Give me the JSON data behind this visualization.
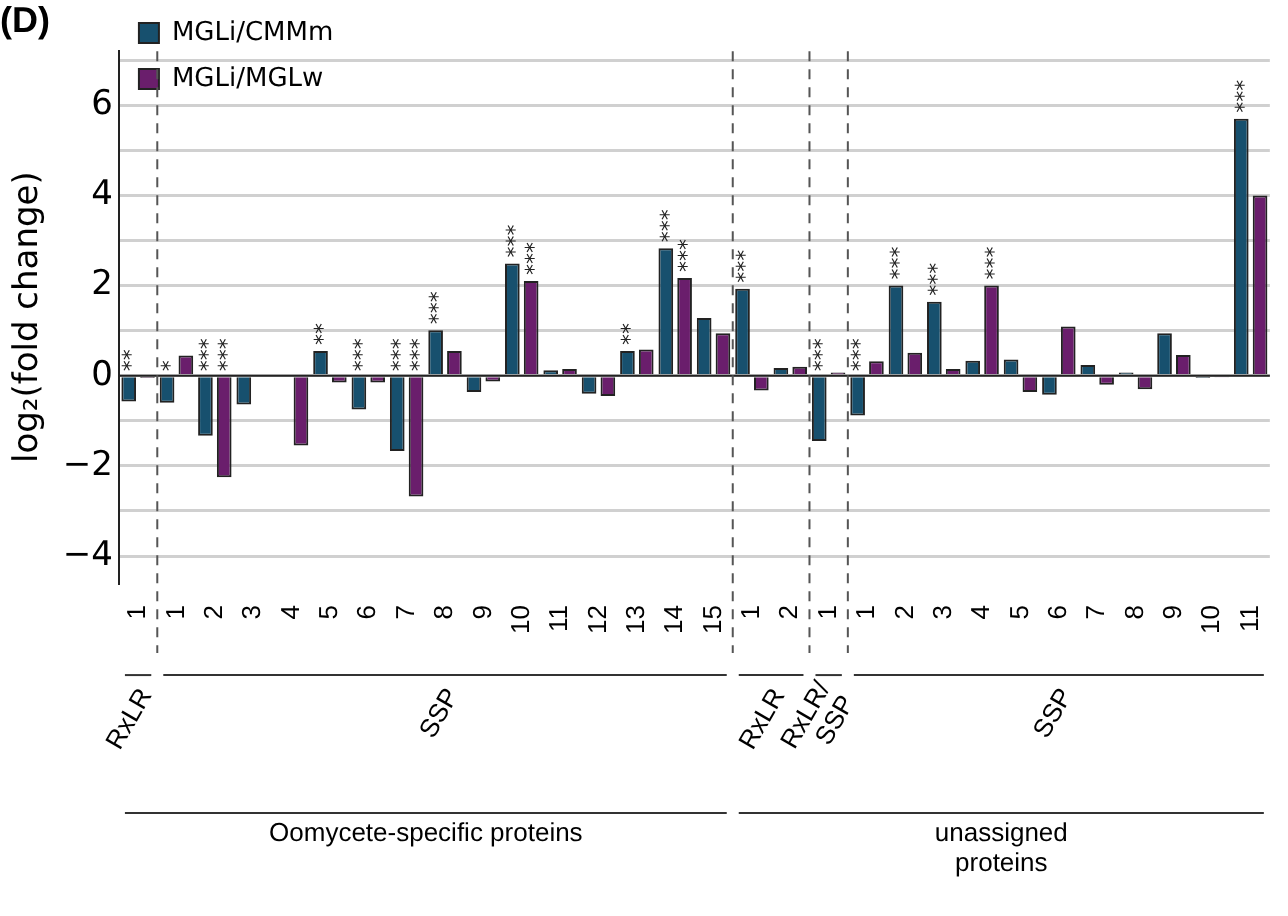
{
  "chart_data": {
    "type": "bar",
    "title": "(D)",
    "ylabel": "log₂(fold change)",
    "categories": [
      "1",
      "1",
      "2",
      "3",
      "4",
      "5",
      "6",
      "7",
      "8",
      "9",
      "10",
      "11",
      "12",
      "13",
      "14",
      "15",
      "1",
      "2",
      "1",
      "1",
      "2",
      "3",
      "4",
      "5",
      "6",
      "7",
      "8",
      "9",
      "10",
      "11"
    ],
    "series": [
      {
        "name": "MGLi/CMMm",
        "color": "#17506e",
        "values": [
          -0.57,
          -0.6,
          -1.33,
          -0.64,
          0,
          0.55,
          -0.75,
          -1.67,
          1.01,
          -0.36,
          2.49,
          0.12,
          -0.4,
          0.55,
          2.83,
          1.28,
          1.93,
          0.17,
          -1.45,
          -0.88,
          2.0,
          1.64,
          0.33,
          0.36,
          -0.42,
          0.24,
          0.07,
          0.94,
          -0.05,
          5.7
        ],
        "value_labels": [
          "**",
          "*",
          "***",
          null,
          null,
          "**",
          "***",
          "***",
          "***",
          null,
          "***",
          null,
          null,
          "**",
          "***",
          null,
          "***",
          null,
          "***",
          "***",
          "***",
          "***",
          null,
          null,
          null,
          null,
          null,
          null,
          null,
          "***"
        ]
      },
      {
        "name": "MGLi/MGLw",
        "color": "#6a1e6c",
        "values": [
          -0.05,
          0.45,
          -2.25,
          0,
          -1.55,
          -0.15,
          -0.15,
          -2.68,
          0.55,
          -0.13,
          2.1,
          0.15,
          -0.45,
          0.58,
          2.17,
          0.94,
          -0.33,
          0.2,
          0.07,
          0.32,
          0.51,
          0.15,
          2.0,
          -0.36,
          1.09,
          -0.2,
          -0.3,
          0.46,
          -0.02,
          4.0
        ],
        "value_labels": [
          null,
          null,
          "***",
          null,
          null,
          null,
          null,
          "***",
          null,
          null,
          "***",
          null,
          null,
          null,
          "***",
          null,
          null,
          null,
          null,
          null,
          null,
          null,
          "***",
          null,
          null,
          null,
          null,
          null,
          null,
          null
        ]
      }
    ],
    "ylim": [
      -4.6,
      7.2
    ],
    "yticks": [
      -4,
      {
        "value": -3,
        "label": null
      },
      -2,
      {
        "value": -1,
        "label": null
      },
      0,
      {
        "value": 1,
        "label": null
      },
      2,
      {
        "value": 3,
        "label": null
      },
      4,
      {
        "value": 5,
        "label": null
      },
      6,
      {
        "value": 7,
        "label": null
      }
    ],
    "grid": "y",
    "legend": "top left",
    "annotations": [
      "RxLR",
      "SSP",
      "RxLR",
      "RxLR/\nSSP",
      "SSP",
      "Oomycete-specific proteins",
      "unassigned\nproteins"
    ]
  }
}
